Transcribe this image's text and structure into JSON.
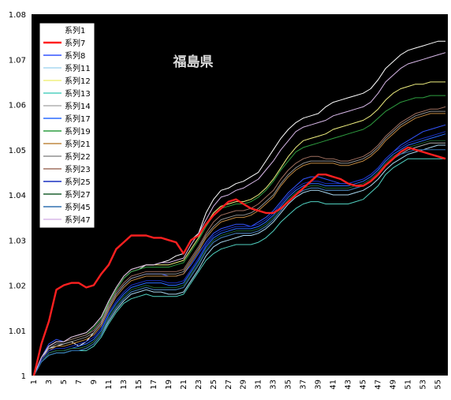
{
  "chart_data": {
    "type": "line",
    "title": "福島県",
    "xlabel": "",
    "ylabel": "",
    "ylim": [
      1,
      1.08
    ],
    "xlim": [
      1,
      56
    ],
    "grid": false,
    "legend": "top-left",
    "y_ticks": [
      "1",
      "1.01",
      "1.02",
      "1.03",
      "1.04",
      "1.05",
      "1.06",
      "1.07",
      "1.08"
    ],
    "x_ticks": [
      "1",
      "3",
      "5",
      "7",
      "9",
      "11",
      "13",
      "15",
      "17",
      "19",
      "21",
      "23",
      "25",
      "27",
      "29",
      "31",
      "33",
      "35",
      "37",
      "39",
      "41",
      "43",
      "45",
      "47",
      "49",
      "51",
      "53",
      "55"
    ],
    "series": [
      {
        "name": "系列1",
        "color": "#ffffff",
        "values": [
          1,
          1.004,
          1.006,
          1.0065,
          1.007,
          1.0075,
          1.0065,
          1.0075,
          1.0095,
          1.0115,
          1.016,
          1.019,
          1.0215,
          1.023,
          1.0235,
          1.0245,
          1.0245,
          1.025,
          1.0255,
          1.0265,
          1.027,
          1.03,
          1.0315,
          1.036,
          1.039,
          1.041,
          1.0415,
          1.0425,
          1.043,
          1.044,
          1.045,
          1.0475,
          1.05,
          1.0525,
          1.0545,
          1.056,
          1.057,
          1.0575,
          1.058,
          1.0595,
          1.0605,
          1.061,
          1.0615,
          1.062,
          1.0625,
          1.0635,
          1.0655,
          1.068,
          1.0695,
          1.071,
          1.072,
          1.0725,
          1.073,
          1.0735,
          1.074,
          1.074
        ]
      },
      {
        "name": "系列7",
        "color": "#ff2020",
        "values": [
          1,
          1.007,
          1.012,
          1.019,
          1.02,
          1.0205,
          1.0205,
          1.0195,
          1.02,
          1.0225,
          1.0245,
          1.028,
          1.0295,
          1.031,
          1.031,
          1.031,
          1.0305,
          1.0305,
          1.03,
          1.0295,
          1.027,
          1.03,
          1.031,
          1.0335,
          1.0355,
          1.037,
          1.0385,
          1.039,
          1.038,
          1.037,
          1.0365,
          1.036,
          1.036,
          1.037,
          1.0385,
          1.04,
          1.0415,
          1.043,
          1.0445,
          1.0445,
          1.044,
          1.0435,
          1.0425,
          1.042,
          1.042,
          1.043,
          1.0445,
          1.0465,
          1.048,
          1.0495,
          1.0505,
          1.05,
          1.0495,
          1.049,
          1.0485,
          1.048
        ]
      },
      {
        "name": "系列8",
        "color": "#3355ff",
        "values": [
          1,
          1.004,
          1.007,
          1.008,
          1.0075,
          1.008,
          1.0085,
          1.009,
          1.01,
          1.012,
          1.015,
          1.018,
          1.02,
          1.0215,
          1.022,
          1.0225,
          1.0225,
          1.0225,
          1.022,
          1.022,
          1.0225,
          1.0245,
          1.027,
          1.0295,
          1.0315,
          1.0325,
          1.033,
          1.0335,
          1.0335,
          1.033,
          1.034,
          1.035,
          1.0365,
          1.0385,
          1.0405,
          1.042,
          1.0435,
          1.044,
          1.044,
          1.0435,
          1.043,
          1.0425,
          1.0425,
          1.043,
          1.0435,
          1.0445,
          1.046,
          1.048,
          1.0495,
          1.051,
          1.052,
          1.053,
          1.054,
          1.0545,
          1.055,
          1.0555
        ]
      },
      {
        "name": "系列11",
        "color": "#a8d8f0",
        "values": [
          1,
          1.003,
          1.0045,
          1.005,
          1.005,
          1.0055,
          1.0055,
          1.006,
          1.007,
          1.009,
          1.012,
          1.0145,
          1.0165,
          1.018,
          1.0185,
          1.019,
          1.0185,
          1.0185,
          1.018,
          1.018,
          1.0185,
          1.021,
          1.0235,
          1.0265,
          1.0285,
          1.0295,
          1.03,
          1.0305,
          1.031,
          1.031,
          1.0315,
          1.0325,
          1.034,
          1.036,
          1.038,
          1.0395,
          1.0405,
          1.041,
          1.041,
          1.0405,
          1.04,
          1.04,
          1.04,
          1.0405,
          1.041,
          1.042,
          1.0435,
          1.0455,
          1.047,
          1.048,
          1.049,
          1.0495,
          1.05,
          1.0505,
          1.051,
          1.051
        ]
      },
      {
        "name": "系列12",
        "color": "#f0f080",
        "values": [
          1,
          1.004,
          1.0065,
          1.0075,
          1.0075,
          1.0085,
          1.009,
          1.0095,
          1.011,
          1.013,
          1.0165,
          1.0195,
          1.022,
          1.0235,
          1.024,
          1.0245,
          1.0245,
          1.0245,
          1.0245,
          1.025,
          1.0255,
          1.028,
          1.0305,
          1.0335,
          1.036,
          1.0375,
          1.038,
          1.0385,
          1.0385,
          1.039,
          1.04,
          1.0415,
          1.0435,
          1.046,
          1.0485,
          1.0505,
          1.052,
          1.0525,
          1.053,
          1.0535,
          1.0545,
          1.055,
          1.0555,
          1.056,
          1.0565,
          1.0575,
          1.059,
          1.061,
          1.0625,
          1.0635,
          1.064,
          1.0645,
          1.0645,
          1.065,
          1.065,
          1.065
        ]
      },
      {
        "name": "系列13",
        "color": "#50d0c0",
        "values": [
          1,
          1.003,
          1.0045,
          1.005,
          1.005,
          1.0055,
          1.0055,
          1.0055,
          1.0065,
          1.0085,
          1.0115,
          1.014,
          1.016,
          1.017,
          1.0175,
          1.018,
          1.0175,
          1.0175,
          1.0175,
          1.0175,
          1.018,
          1.0205,
          1.023,
          1.0255,
          1.027,
          1.028,
          1.0285,
          1.029,
          1.029,
          1.029,
          1.0295,
          1.0305,
          1.032,
          1.034,
          1.0355,
          1.037,
          1.038,
          1.0385,
          1.0385,
          1.038,
          1.038,
          1.038,
          1.038,
          1.0385,
          1.039,
          1.0405,
          1.042,
          1.0445,
          1.046,
          1.047,
          1.048,
          1.048,
          1.048,
          1.048,
          1.048,
          1.048
        ]
      },
      {
        "name": "系列14",
        "color": "#b0b0b0",
        "values": [
          1,
          1.003,
          1.005,
          1.0055,
          1.0055,
          1.006,
          1.006,
          1.0065,
          1.0075,
          1.0095,
          1.0125,
          1.015,
          1.017,
          1.0185,
          1.019,
          1.0195,
          1.019,
          1.019,
          1.019,
          1.019,
          1.0195,
          1.022,
          1.0245,
          1.0275,
          1.0295,
          1.0305,
          1.031,
          1.0315,
          1.0315,
          1.0315,
          1.032,
          1.033,
          1.0345,
          1.0365,
          1.0385,
          1.04,
          1.041,
          1.0415,
          1.0415,
          1.041,
          1.041,
          1.041,
          1.041,
          1.0415,
          1.042,
          1.043,
          1.0445,
          1.0465,
          1.048,
          1.049,
          1.05,
          1.0505,
          1.051,
          1.0515,
          1.0515,
          1.0515
        ]
      },
      {
        "name": "系列17",
        "color": "#2a6cff",
        "values": [
          1,
          1.003,
          1.005,
          1.0055,
          1.0055,
          1.006,
          1.0065,
          1.007,
          1.008,
          1.01,
          1.0135,
          1.016,
          1.018,
          1.0195,
          1.02,
          1.0205,
          1.0205,
          1.0205,
          1.02,
          1.02,
          1.0205,
          1.023,
          1.0255,
          1.0285,
          1.0305,
          1.0315,
          1.032,
          1.0325,
          1.0325,
          1.0325,
          1.033,
          1.034,
          1.0355,
          1.0375,
          1.0395,
          1.041,
          1.042,
          1.0425,
          1.0425,
          1.042,
          1.042,
          1.042,
          1.042,
          1.0425,
          1.043,
          1.044,
          1.0455,
          1.0475,
          1.049,
          1.05,
          1.051,
          1.0515,
          1.052,
          1.0525,
          1.053,
          1.0535
        ]
      },
      {
        "name": "系列19",
        "color": "#2e9e40",
        "values": [
          1,
          1.004,
          1.0065,
          1.0075,
          1.0075,
          1.008,
          1.0085,
          1.009,
          1.0105,
          1.0125,
          1.016,
          1.019,
          1.0215,
          1.023,
          1.0235,
          1.024,
          1.024,
          1.024,
          1.024,
          1.0245,
          1.025,
          1.0275,
          1.03,
          1.033,
          1.0355,
          1.037,
          1.0375,
          1.038,
          1.038,
          1.0385,
          1.0395,
          1.041,
          1.043,
          1.0455,
          1.0475,
          1.0495,
          1.0505,
          1.051,
          1.0515,
          1.052,
          1.0525,
          1.053,
          1.0535,
          1.054,
          1.0545,
          1.0555,
          1.057,
          1.0585,
          1.0595,
          1.0605,
          1.061,
          1.0615,
          1.0615,
          1.062,
          1.062,
          1.062
        ]
      },
      {
        "name": "系列21",
        "color": "#c08840",
        "values": [
          1,
          1.0035,
          1.0055,
          1.0065,
          1.0065,
          1.007,
          1.0075,
          1.008,
          1.009,
          1.011,
          1.0145,
          1.0175,
          1.0195,
          1.021,
          1.0215,
          1.022,
          1.022,
          1.022,
          1.022,
          1.022,
          1.0225,
          1.025,
          1.0275,
          1.0305,
          1.0325,
          1.034,
          1.0345,
          1.035,
          1.035,
          1.0355,
          1.0365,
          1.038,
          1.0395,
          1.042,
          1.044,
          1.0455,
          1.0465,
          1.047,
          1.047,
          1.047,
          1.047,
          1.0465,
          1.0465,
          1.047,
          1.0475,
          1.0485,
          1.05,
          1.052,
          1.0535,
          1.055,
          1.056,
          1.057,
          1.0575,
          1.058,
          1.058,
          1.058
        ]
      },
      {
        "name": "系列22",
        "color": "#909090",
        "values": [
          1,
          1.0035,
          1.006,
          1.007,
          1.007,
          1.0075,
          1.008,
          1.0085,
          1.0095,
          1.0115,
          1.015,
          1.018,
          1.02,
          1.0215,
          1.022,
          1.0225,
          1.0225,
          1.0225,
          1.0225,
          1.0225,
          1.023,
          1.0255,
          1.028,
          1.031,
          1.033,
          1.0345,
          1.035,
          1.0355,
          1.0355,
          1.036,
          1.037,
          1.0385,
          1.04,
          1.0425,
          1.0445,
          1.046,
          1.047,
          1.0475,
          1.0475,
          1.0475,
          1.0475,
          1.047,
          1.047,
          1.0475,
          1.048,
          1.049,
          1.0505,
          1.0525,
          1.054,
          1.0555,
          1.0565,
          1.0575,
          1.058,
          1.0585,
          1.0585,
          1.0585
        ]
      },
      {
        "name": "系列23",
        "color": "#a07060",
        "values": [
          1,
          1.004,
          1.0065,
          1.0075,
          1.0075,
          1.008,
          1.0085,
          1.009,
          1.01,
          1.012,
          1.0155,
          1.0185,
          1.0205,
          1.022,
          1.0225,
          1.023,
          1.023,
          1.023,
          1.023,
          1.023,
          1.0235,
          1.026,
          1.0285,
          1.0315,
          1.034,
          1.0355,
          1.036,
          1.0365,
          1.0365,
          1.037,
          1.038,
          1.0395,
          1.041,
          1.0435,
          1.0455,
          1.047,
          1.048,
          1.0485,
          1.0485,
          1.048,
          1.048,
          1.0475,
          1.0475,
          1.048,
          1.0485,
          1.0495,
          1.051,
          1.053,
          1.0545,
          1.056,
          1.057,
          1.058,
          1.0585,
          1.059,
          1.059,
          1.0595
        ]
      },
      {
        "name": "系列25",
        "color": "#1a30c0",
        "values": [
          1,
          1.0035,
          1.0055,
          1.006,
          1.006,
          1.0065,
          1.007,
          1.0075,
          1.0085,
          1.0105,
          1.014,
          1.0165,
          1.0185,
          1.02,
          1.0205,
          1.021,
          1.021,
          1.021,
          1.0205,
          1.0205,
          1.021,
          1.0235,
          1.026,
          1.029,
          1.031,
          1.032,
          1.0325,
          1.033,
          1.033,
          1.033,
          1.0335,
          1.0345,
          1.036,
          1.038,
          1.04,
          1.0415,
          1.0425,
          1.043,
          1.043,
          1.0425,
          1.0425,
          1.0425,
          1.0425,
          1.043,
          1.0435,
          1.0445,
          1.046,
          1.048,
          1.0495,
          1.0505,
          1.0515,
          1.052,
          1.0525,
          1.053,
          1.0535,
          1.054
        ]
      },
      {
        "name": "系列27",
        "color": "#1e6030",
        "values": [
          1,
          1.003,
          1.005,
          1.0055,
          1.0055,
          1.006,
          1.006,
          1.0065,
          1.0075,
          1.0095,
          1.013,
          1.0155,
          1.0175,
          1.019,
          1.0195,
          1.02,
          1.0195,
          1.0195,
          1.0195,
          1.0195,
          1.02,
          1.0225,
          1.025,
          1.028,
          1.03,
          1.031,
          1.0315,
          1.032,
          1.032,
          1.032,
          1.0325,
          1.0335,
          1.035,
          1.037,
          1.039,
          1.0405,
          1.0415,
          1.042,
          1.042,
          1.0415,
          1.0415,
          1.0415,
          1.0415,
          1.042,
          1.0425,
          1.0435,
          1.045,
          1.047,
          1.0485,
          1.0495,
          1.0505,
          1.051,
          1.0515,
          1.052,
          1.052,
          1.052
        ]
      },
      {
        "name": "系列45",
        "color": "#3070b0",
        "values": [
          1,
          1.003,
          1.0045,
          1.005,
          1.005,
          1.0055,
          1.0055,
          1.006,
          1.007,
          1.009,
          1.0125,
          1.015,
          1.017,
          1.0185,
          1.019,
          1.0195,
          1.019,
          1.019,
          1.019,
          1.019,
          1.0195,
          1.022,
          1.0245,
          1.0275,
          1.0295,
          1.0305,
          1.031,
          1.0315,
          1.0315,
          1.0315,
          1.032,
          1.033,
          1.0345,
          1.0365,
          1.0385,
          1.04,
          1.041,
          1.0415,
          1.0415,
          1.041,
          1.041,
          1.041,
          1.041,
          1.0415,
          1.042,
          1.043,
          1.0445,
          1.0465,
          1.048,
          1.049,
          1.0495,
          1.05,
          1.05,
          1.05,
          1.05,
          1.05
        ]
      },
      {
        "name": "系列47",
        "color": "#d8b8e8",
        "values": [
          1,
          1.004,
          1.0065,
          1.0075,
          1.0075,
          1.0085,
          1.009,
          1.0095,
          1.011,
          1.013,
          1.0165,
          1.0195,
          1.022,
          1.0235,
          1.024,
          1.0245,
          1.0245,
          1.025,
          1.025,
          1.0255,
          1.026,
          1.029,
          1.0315,
          1.0345,
          1.0375,
          1.0395,
          1.04,
          1.041,
          1.0415,
          1.0425,
          1.0435,
          1.0455,
          1.0475,
          1.05,
          1.052,
          1.054,
          1.055,
          1.0555,
          1.056,
          1.0565,
          1.0575,
          1.058,
          1.0585,
          1.059,
          1.0595,
          1.0605,
          1.0625,
          1.065,
          1.0665,
          1.068,
          1.069,
          1.0695,
          1.07,
          1.0705,
          1.071,
          1.0715
        ]
      }
    ]
  }
}
